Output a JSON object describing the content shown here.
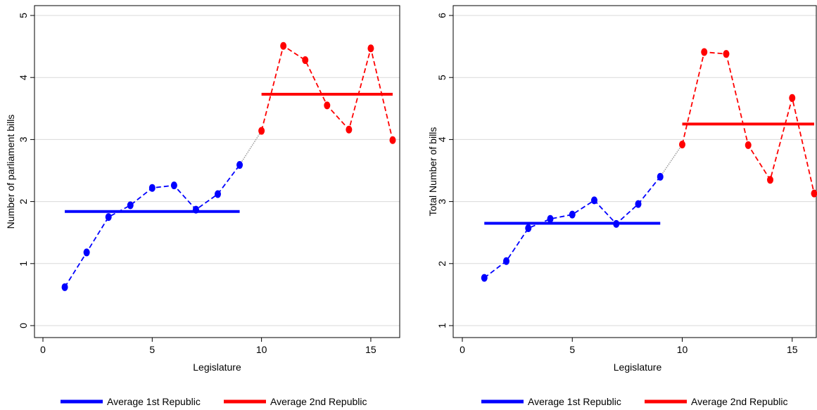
{
  "chart_data": [
    {
      "type": "line",
      "xlabel": "Legislature",
      "ylabel": "Number of parliament bills",
      "xlim": [
        0,
        16
      ],
      "ylim": [
        0,
        5
      ],
      "xticks": [
        "0",
        "5",
        "10",
        "15"
      ],
      "yticks": [
        "0",
        "1",
        "2",
        "3",
        "4",
        "5"
      ],
      "grid": "horizontal",
      "legend_position": "bottom",
      "series": [
        {
          "name": "1st Republic",
          "color": "#0000ff",
          "style": "dashed-markers",
          "x": [
            1,
            2,
            3,
            4,
            5,
            6,
            7,
            8,
            9
          ],
          "values": [
            0.62,
            1.18,
            1.75,
            1.94,
            2.22,
            2.26,
            1.87,
            2.12,
            2.59
          ]
        },
        {
          "name": "2nd Republic",
          "color": "#ff0000",
          "style": "dashed-markers",
          "x": [
            10,
            11,
            12,
            13,
            14,
            15,
            16
          ],
          "values": [
            3.14,
            4.51,
            4.28,
            3.55,
            3.16,
            4.47,
            2.99
          ]
        }
      ],
      "connector": {
        "color": "#999999",
        "from": [
          9,
          2.59
        ],
        "to": [
          10,
          3.14
        ]
      },
      "averages": [
        {
          "name": "Average 1st Republic",
          "color": "#0000ff",
          "x": [
            1,
            9
          ],
          "value": 1.84
        },
        {
          "name": "Average 2nd Republic",
          "color": "#ff0000",
          "x": [
            10,
            16
          ],
          "value": 3.73
        }
      ],
      "legend": [
        "Average 1st Republic",
        "Average 2nd Republic"
      ]
    },
    {
      "type": "line",
      "xlabel": "Legislature",
      "ylabel": "Total Number of  bills",
      "xlim": [
        0,
        16
      ],
      "ylim": [
        1,
        6
      ],
      "xticks": [
        "0",
        "5",
        "10",
        "15"
      ],
      "yticks": [
        "1",
        "2",
        "3",
        "4",
        "5",
        "6"
      ],
      "grid": "horizontal",
      "legend_position": "bottom",
      "series": [
        {
          "name": "1st Republic",
          "color": "#0000ff",
          "style": "dashed-markers",
          "x": [
            1,
            2,
            3,
            4,
            5,
            6,
            7,
            8,
            9
          ],
          "values": [
            1.77,
            2.04,
            2.57,
            2.72,
            2.79,
            3.02,
            2.64,
            2.96,
            3.4
          ]
        },
        {
          "name": "2nd Republic",
          "color": "#ff0000",
          "style": "dashed-markers",
          "x": [
            10,
            11,
            12,
            13,
            14,
            15,
            16
          ],
          "values": [
            3.92,
            5.41,
            5.38,
            3.91,
            3.35,
            4.67,
            3.13
          ]
        }
      ],
      "connector": {
        "color": "#999999",
        "from": [
          9,
          3.4
        ],
        "to": [
          10,
          3.92
        ]
      },
      "averages": [
        {
          "name": "Average 1st Republic",
          "color": "#0000ff",
          "x": [
            1,
            9
          ],
          "value": 2.65
        },
        {
          "name": "Average 2nd Republic",
          "color": "#ff0000",
          "x": [
            10,
            16
          ],
          "value": 4.25
        }
      ],
      "legend": [
        "Average 1st Republic",
        "Average 2nd Republic"
      ]
    }
  ]
}
